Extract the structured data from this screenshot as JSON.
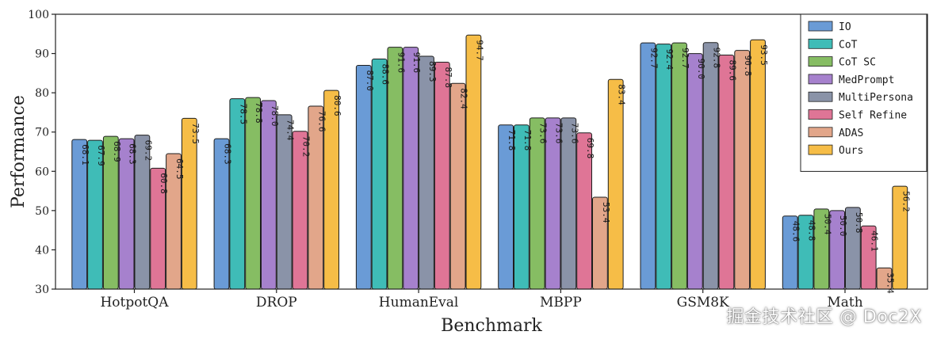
{
  "chart_data": {
    "type": "bar",
    "xlabel": "Benchmark",
    "ylabel": "Performance",
    "ylim": [
      30,
      100
    ],
    "yticks": [
      30,
      40,
      50,
      60,
      70,
      80,
      90,
      100
    ],
    "grid": false,
    "legend_position": "top-right",
    "categories": [
      "HotpotQA",
      "DROP",
      "HumanEval",
      "MBPP",
      "GSM8K",
      "Math"
    ],
    "series": [
      {
        "name": "IO",
        "color": "#6a9bd6",
        "values": [
          68.1,
          68.3,
          87.0,
          71.8,
          92.7,
          48.6
        ]
      },
      {
        "name": "CoT",
        "color": "#3fbcb7",
        "values": [
          67.9,
          78.5,
          88.6,
          71.8,
          92.4,
          48.8
        ]
      },
      {
        "name": "CoT SC",
        "color": "#86bd63",
        "values": [
          68.9,
          78.8,
          91.6,
          73.6,
          92.7,
          50.4
        ]
      },
      {
        "name": "MedPrompt",
        "color": "#a681cd",
        "values": [
          68.3,
          78.0,
          91.6,
          73.6,
          90.0,
          50.0
        ]
      },
      {
        "name": "MultiPersona",
        "color": "#8a93a8",
        "values": [
          69.2,
          74.4,
          89.3,
          73.6,
          92.8,
          50.8
        ]
      },
      {
        "name": "Self Refine",
        "color": "#df7596",
        "values": [
          60.8,
          70.2,
          87.8,
          69.8,
          89.6,
          46.1
        ]
      },
      {
        "name": "ADAS",
        "color": "#e2a68a",
        "values": [
          64.5,
          76.6,
          82.4,
          53.4,
          90.8,
          35.4
        ]
      },
      {
        "name": "Ours",
        "color": "#f6bd47",
        "values": [
          73.5,
          80.6,
          94.7,
          83.4,
          93.5,
          56.2
        ]
      }
    ]
  },
  "watermark": "掘金技术社区 @ Doc2X"
}
